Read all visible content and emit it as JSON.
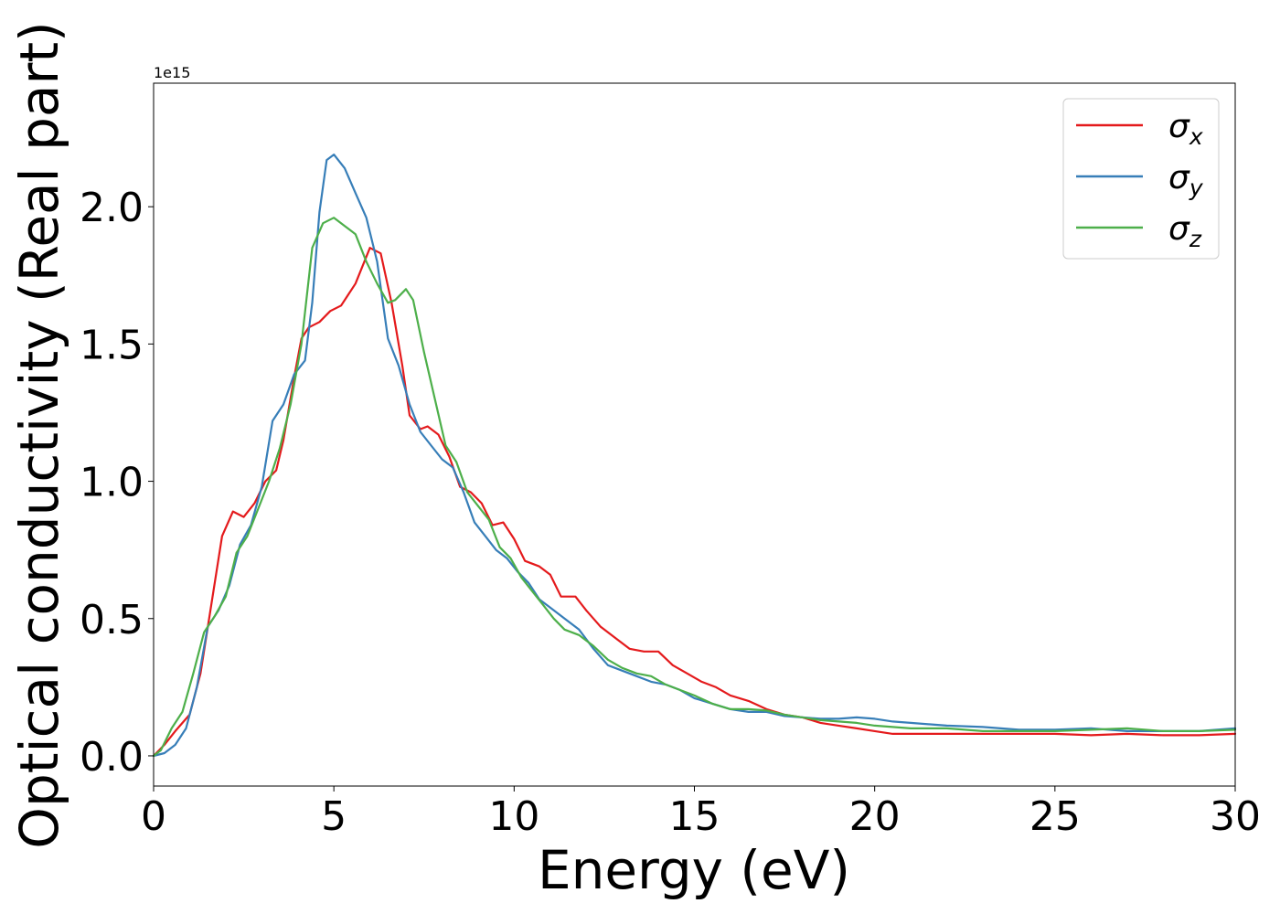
{
  "chart_data": {
    "type": "line",
    "title": "",
    "xlabel": "Energy (eV)",
    "ylabel": "Optical conductivity (Real part)",
    "y_offset_label": "1e15",
    "xlim": [
      0,
      30
    ],
    "ylim": [
      -0.11,
      2.45
    ],
    "x_ticks": [
      {
        "value": 0,
        "label": "0"
      },
      {
        "value": 5,
        "label": "5"
      },
      {
        "value": 10,
        "label": "10"
      },
      {
        "value": 15,
        "label": "15"
      },
      {
        "value": 20,
        "label": "20"
      },
      {
        "value": 25,
        "label": "25"
      },
      {
        "value": 30,
        "label": "30"
      }
    ],
    "y_ticks": [
      {
        "value": 0.0,
        "label": "0.0"
      },
      {
        "value": 0.5,
        "label": "0.5"
      },
      {
        "value": 1.0,
        "label": "1.0"
      },
      {
        "value": 1.5,
        "label": "1.5"
      },
      {
        "value": 2.0,
        "label": "2.0"
      }
    ],
    "grid": false,
    "legend_position": "top-right",
    "series": [
      {
        "name": "σx",
        "legend_symbol": "σ",
        "legend_subscript": "x",
        "color": "#e41a1c",
        "points": [
          [
            0,
            0
          ],
          [
            0.3,
            0.04
          ],
          [
            0.6,
            0.09
          ],
          [
            1.0,
            0.15
          ],
          [
            1.3,
            0.3
          ],
          [
            1.6,
            0.55
          ],
          [
            1.9,
            0.8
          ],
          [
            2.2,
            0.89
          ],
          [
            2.5,
            0.87
          ],
          [
            2.8,
            0.92
          ],
          [
            3.1,
            1.0
          ],
          [
            3.4,
            1.04
          ],
          [
            3.6,
            1.15
          ],
          [
            3.9,
            1.38
          ],
          [
            4.1,
            1.52
          ],
          [
            4.3,
            1.56
          ],
          [
            4.6,
            1.58
          ],
          [
            4.9,
            1.62
          ],
          [
            5.2,
            1.64
          ],
          [
            5.6,
            1.72
          ],
          [
            6.0,
            1.85
          ],
          [
            6.3,
            1.83
          ],
          [
            6.6,
            1.65
          ],
          [
            6.9,
            1.42
          ],
          [
            7.1,
            1.24
          ],
          [
            7.4,
            1.19
          ],
          [
            7.6,
            1.2
          ],
          [
            7.9,
            1.17
          ],
          [
            8.2,
            1.09
          ],
          [
            8.5,
            0.98
          ],
          [
            8.8,
            0.96
          ],
          [
            9.1,
            0.92
          ],
          [
            9.4,
            0.84
          ],
          [
            9.7,
            0.85
          ],
          [
            10.0,
            0.79
          ],
          [
            10.3,
            0.71
          ],
          [
            10.7,
            0.69
          ],
          [
            11.0,
            0.66
          ],
          [
            11.3,
            0.58
          ],
          [
            11.7,
            0.58
          ],
          [
            12.0,
            0.53
          ],
          [
            12.4,
            0.47
          ],
          [
            12.8,
            0.43
          ],
          [
            13.2,
            0.39
          ],
          [
            13.6,
            0.38
          ],
          [
            14.0,
            0.38
          ],
          [
            14.4,
            0.33
          ],
          [
            14.8,
            0.3
          ],
          [
            15.2,
            0.27
          ],
          [
            15.6,
            0.25
          ],
          [
            16.0,
            0.22
          ],
          [
            16.5,
            0.2
          ],
          [
            17.0,
            0.17
          ],
          [
            17.5,
            0.15
          ],
          [
            18.0,
            0.14
          ],
          [
            18.5,
            0.12
          ],
          [
            19.0,
            0.11
          ],
          [
            19.5,
            0.1
          ],
          [
            20.0,
            0.09
          ],
          [
            20.5,
            0.08
          ],
          [
            21.0,
            0.08
          ],
          [
            22.0,
            0.08
          ],
          [
            23.0,
            0.08
          ],
          [
            24.0,
            0.08
          ],
          [
            25.0,
            0.08
          ],
          [
            26.0,
            0.075
          ],
          [
            27.0,
            0.08
          ],
          [
            28.0,
            0.075
          ],
          [
            29.0,
            0.075
          ],
          [
            30.0,
            0.08
          ]
        ]
      },
      {
        "name": "σy",
        "legend_symbol": "σ",
        "legend_subscript": "y",
        "color": "#377eb8",
        "points": [
          [
            0,
            0
          ],
          [
            0.3,
            0.01
          ],
          [
            0.6,
            0.04
          ],
          [
            0.9,
            0.1
          ],
          [
            1.2,
            0.25
          ],
          [
            1.5,
            0.47
          ],
          [
            1.8,
            0.53
          ],
          [
            2.1,
            0.62
          ],
          [
            2.4,
            0.77
          ],
          [
            2.7,
            0.84
          ],
          [
            3.0,
            0.98
          ],
          [
            3.3,
            1.22
          ],
          [
            3.6,
            1.28
          ],
          [
            3.9,
            1.39
          ],
          [
            4.2,
            1.44
          ],
          [
            4.4,
            1.65
          ],
          [
            4.6,
            1.98
          ],
          [
            4.8,
            2.17
          ],
          [
            5.0,
            2.19
          ],
          [
            5.3,
            2.14
          ],
          [
            5.6,
            2.05
          ],
          [
            5.9,
            1.96
          ],
          [
            6.2,
            1.8
          ],
          [
            6.5,
            1.52
          ],
          [
            6.8,
            1.42
          ],
          [
            7.1,
            1.28
          ],
          [
            7.4,
            1.18
          ],
          [
            7.7,
            1.13
          ],
          [
            8.0,
            1.08
          ],
          [
            8.3,
            1.05
          ],
          [
            8.6,
            0.96
          ],
          [
            8.9,
            0.85
          ],
          [
            9.2,
            0.8
          ],
          [
            9.5,
            0.75
          ],
          [
            9.8,
            0.72
          ],
          [
            10.1,
            0.67
          ],
          [
            10.4,
            0.63
          ],
          [
            10.7,
            0.57
          ],
          [
            11.0,
            0.54
          ],
          [
            11.4,
            0.5
          ],
          [
            11.8,
            0.46
          ],
          [
            12.2,
            0.39
          ],
          [
            12.6,
            0.33
          ],
          [
            13.0,
            0.31
          ],
          [
            13.4,
            0.29
          ],
          [
            13.8,
            0.27
          ],
          [
            14.2,
            0.26
          ],
          [
            14.6,
            0.24
          ],
          [
            15.0,
            0.21
          ],
          [
            15.5,
            0.19
          ],
          [
            16.0,
            0.17
          ],
          [
            16.5,
            0.16
          ],
          [
            17.0,
            0.16
          ],
          [
            17.5,
            0.145
          ],
          [
            18.0,
            0.14
          ],
          [
            18.5,
            0.135
          ],
          [
            19.0,
            0.135
          ],
          [
            19.5,
            0.14
          ],
          [
            20.0,
            0.135
          ],
          [
            20.5,
            0.125
          ],
          [
            21.0,
            0.12
          ],
          [
            22.0,
            0.11
          ],
          [
            23.0,
            0.105
          ],
          [
            24.0,
            0.095
          ],
          [
            25.0,
            0.095
          ],
          [
            26.0,
            0.1
          ],
          [
            27.0,
            0.09
          ],
          [
            28.0,
            0.09
          ],
          [
            29.0,
            0.09
          ],
          [
            30.0,
            0.1
          ]
        ]
      },
      {
        "name": "σz",
        "legend_symbol": "σ",
        "legend_subscript": "z",
        "color": "#4daf4a",
        "points": [
          [
            0,
            0
          ],
          [
            0.2,
            0.02
          ],
          [
            0.5,
            0.1
          ],
          [
            0.8,
            0.16
          ],
          [
            1.1,
            0.3
          ],
          [
            1.4,
            0.45
          ],
          [
            1.7,
            0.51
          ],
          [
            2.0,
            0.58
          ],
          [
            2.3,
            0.74
          ],
          [
            2.6,
            0.8
          ],
          [
            2.9,
            0.9
          ],
          [
            3.2,
            1.0
          ],
          [
            3.5,
            1.12
          ],
          [
            3.8,
            1.28
          ],
          [
            4.1,
            1.5
          ],
          [
            4.4,
            1.85
          ],
          [
            4.7,
            1.94
          ],
          [
            5.0,
            1.96
          ],
          [
            5.3,
            1.93
          ],
          [
            5.6,
            1.9
          ],
          [
            5.9,
            1.8
          ],
          [
            6.2,
            1.72
          ],
          [
            6.5,
            1.65
          ],
          [
            6.7,
            1.66
          ],
          [
            7.0,
            1.7
          ],
          [
            7.2,
            1.66
          ],
          [
            7.5,
            1.47
          ],
          [
            7.8,
            1.3
          ],
          [
            8.1,
            1.13
          ],
          [
            8.4,
            1.07
          ],
          [
            8.7,
            0.96
          ],
          [
            9.0,
            0.91
          ],
          [
            9.3,
            0.86
          ],
          [
            9.6,
            0.76
          ],
          [
            9.9,
            0.72
          ],
          [
            10.2,
            0.65
          ],
          [
            10.5,
            0.6
          ],
          [
            10.8,
            0.55
          ],
          [
            11.1,
            0.5
          ],
          [
            11.4,
            0.46
          ],
          [
            11.8,
            0.44
          ],
          [
            12.2,
            0.4
          ],
          [
            12.6,
            0.35
          ],
          [
            13.0,
            0.32
          ],
          [
            13.4,
            0.3
          ],
          [
            13.8,
            0.29
          ],
          [
            14.2,
            0.26
          ],
          [
            14.6,
            0.24
          ],
          [
            15.0,
            0.22
          ],
          [
            15.5,
            0.19
          ],
          [
            16.0,
            0.17
          ],
          [
            16.5,
            0.17
          ],
          [
            17.0,
            0.165
          ],
          [
            17.5,
            0.15
          ],
          [
            18.0,
            0.14
          ],
          [
            18.5,
            0.13
          ],
          [
            19.0,
            0.125
          ],
          [
            19.5,
            0.12
          ],
          [
            20.0,
            0.11
          ],
          [
            20.5,
            0.105
          ],
          [
            21.0,
            0.1
          ],
          [
            22.0,
            0.1
          ],
          [
            23.0,
            0.09
          ],
          [
            24.0,
            0.09
          ],
          [
            25.0,
            0.09
          ],
          [
            26.0,
            0.095
          ],
          [
            27.0,
            0.1
          ],
          [
            28.0,
            0.09
          ],
          [
            29.0,
            0.09
          ],
          [
            30.0,
            0.095
          ]
        ]
      }
    ]
  }
}
